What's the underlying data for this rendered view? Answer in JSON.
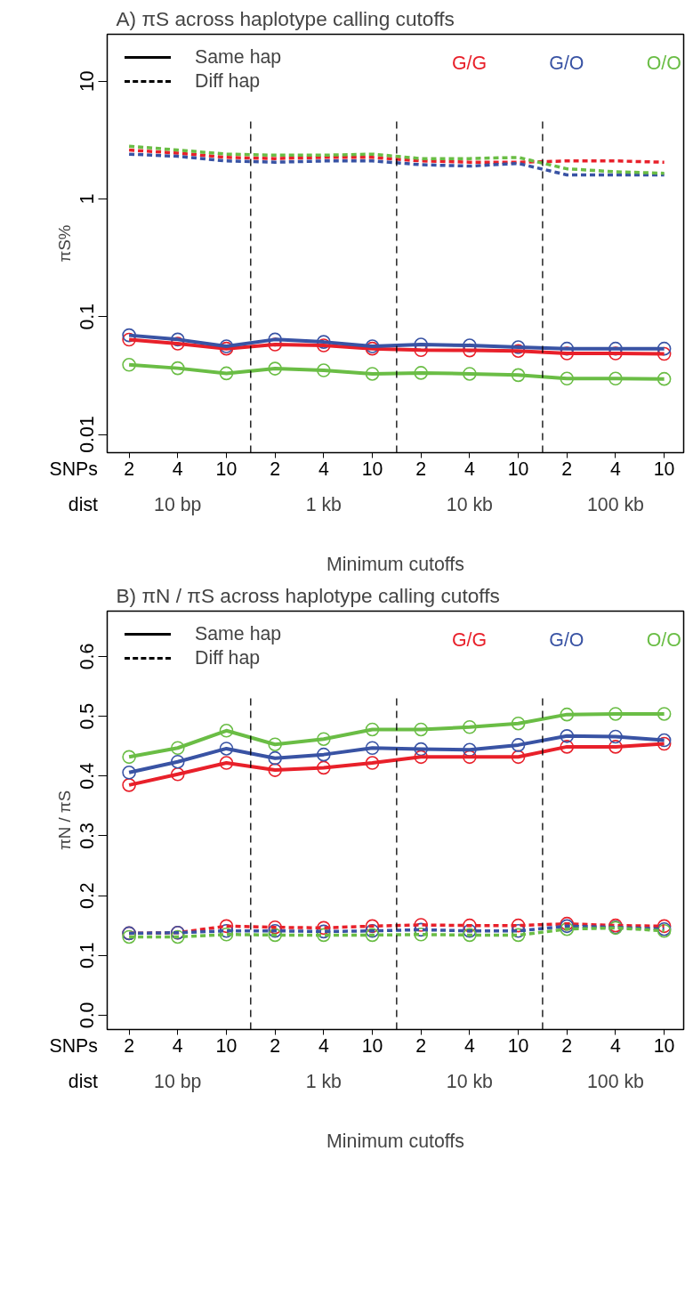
{
  "chart_data": [
    {
      "type": "line",
      "title": "A)    πS across haplotype calling cutoffs",
      "xlabel": "Minimum cutoffs",
      "ylabel": "πS%",
      "categories": [
        "2",
        "4",
        "10",
        "2",
        "4",
        "10",
        "2",
        "4",
        "10",
        "2",
        "4",
        "10"
      ],
      "log": true,
      "ylim": [
        0.007,
        25
      ],
      "yticks": [
        0.01,
        0.1,
        1,
        10
      ],
      "legend": "top",
      "annotations": [
        "SNPs",
        "dist",
        "Same hap",
        "Diff hap",
        "10 bp",
        "1 kb",
        "10 kb",
        "100 kb"
      ],
      "series": [
        {
          "name": "G/G",
          "color": "#e8202a",
          "line_style": "solid",
          "marker": "circle",
          "values": [
            0.0638,
            0.059,
            0.0535,
            0.058,
            0.057,
            0.0535,
            0.052,
            0.0517,
            0.0512,
            0.0487,
            0.0487,
            0.0483
          ]
        },
        {
          "name": "G/O",
          "color": "#3953a4",
          "line_style": "solid",
          "marker": "circle",
          "values": [
            0.0695,
            0.064,
            0.056,
            0.064,
            0.061,
            0.056,
            0.058,
            0.057,
            0.055,
            0.0535,
            0.0535,
            0.0535
          ]
        },
        {
          "name": "O/O",
          "color": "#6abd45",
          "line_style": "solid",
          "marker": "circle",
          "values": [
            0.039,
            0.0365,
            0.033,
            0.0362,
            0.035,
            0.0327,
            0.0333,
            0.0327,
            0.0319,
            0.0298,
            0.0298,
            0.0296
          ]
        },
        {
          "color": "#e8202a",
          "line_style": "dashed",
          "marker": "none",
          "values": [
            2.6,
            2.45,
            2.25,
            2.2,
            2.25,
            2.25,
            2.1,
            2.05,
            2.05,
            2.1,
            2.1,
            2.05
          ]
        },
        {
          "color": "#3953a4",
          "line_style": "dashed",
          "marker": "none",
          "values": [
            2.4,
            2.3,
            2.1,
            2.05,
            2.1,
            2.1,
            1.95,
            1.9,
            2.0,
            1.6,
            1.6,
            1.6
          ]
        },
        {
          "color": "#6abd45",
          "line_style": "dashed",
          "marker": "none",
          "values": [
            2.8,
            2.6,
            2.4,
            2.35,
            2.35,
            2.4,
            2.2,
            2.2,
            2.25,
            1.8,
            1.7,
            1.65
          ]
        }
      ]
    },
    {
      "type": "line",
      "title": "B)  πN / πS  across haplotype calling cutoffs",
      "xlabel": "Minimum cutoffs",
      "ylabel": "πN / πS",
      "categories": [
        "2",
        "4",
        "10",
        "2",
        "4",
        "10",
        "2",
        "4",
        "10",
        "2",
        "4",
        "10"
      ],
      "ylim": [
        -0.024,
        0.676
      ],
      "yticks": [
        {
          "value": 0,
          "label": "0.0"
        },
        0.1,
        0.2,
        0.3,
        0.4,
        0.5,
        0.6
      ],
      "legend": "top",
      "annotations": [
        "SNPs",
        "dist",
        "Same hap",
        "Diff hap",
        "10 bp",
        "1 kb",
        "10 kb",
        "100 kb"
      ],
      "series": [
        {
          "name": "G/G",
          "color": "#e8202a",
          "line_style": "solid",
          "marker": "circle",
          "values": [
            0.385,
            0.403,
            0.422,
            0.41,
            0.414,
            0.422,
            0.432,
            0.432,
            0.432,
            0.449,
            0.449,
            0.454
          ]
        },
        {
          "name": "G/O",
          "color": "#3953a4",
          "line_style": "solid",
          "marker": "circle",
          "values": [
            0.406,
            0.424,
            0.446,
            0.43,
            0.436,
            0.447,
            0.445,
            0.444,
            0.452,
            0.467,
            0.466,
            0.46
          ]
        },
        {
          "name": "O/O",
          "color": "#6abd45",
          "line_style": "solid",
          "marker": "circle",
          "values": [
            0.432,
            0.447,
            0.476,
            0.453,
            0.462,
            0.478,
            0.478,
            0.482,
            0.488,
            0.503,
            0.504,
            0.504
          ]
        },
        {
          "color": "#e8202a",
          "line_style": "dashed",
          "marker": "circle",
          "values": [
            0.137,
            0.138,
            0.149,
            0.147,
            0.146,
            0.149,
            0.151,
            0.15,
            0.15,
            0.153,
            0.15,
            0.149
          ]
        },
        {
          "color": "#3953a4",
          "line_style": "dashed",
          "marker": "circle",
          "values": [
            0.137,
            0.138,
            0.141,
            0.141,
            0.14,
            0.141,
            0.143,
            0.141,
            0.141,
            0.149,
            0.147,
            0.144
          ]
        },
        {
          "color": "#6abd45",
          "line_style": "dashed",
          "marker": "circle",
          "values": [
            0.131,
            0.131,
            0.135,
            0.134,
            0.134,
            0.134,
            0.135,
            0.134,
            0.134,
            0.144,
            0.146,
            0.141
          ]
        }
      ]
    }
  ]
}
